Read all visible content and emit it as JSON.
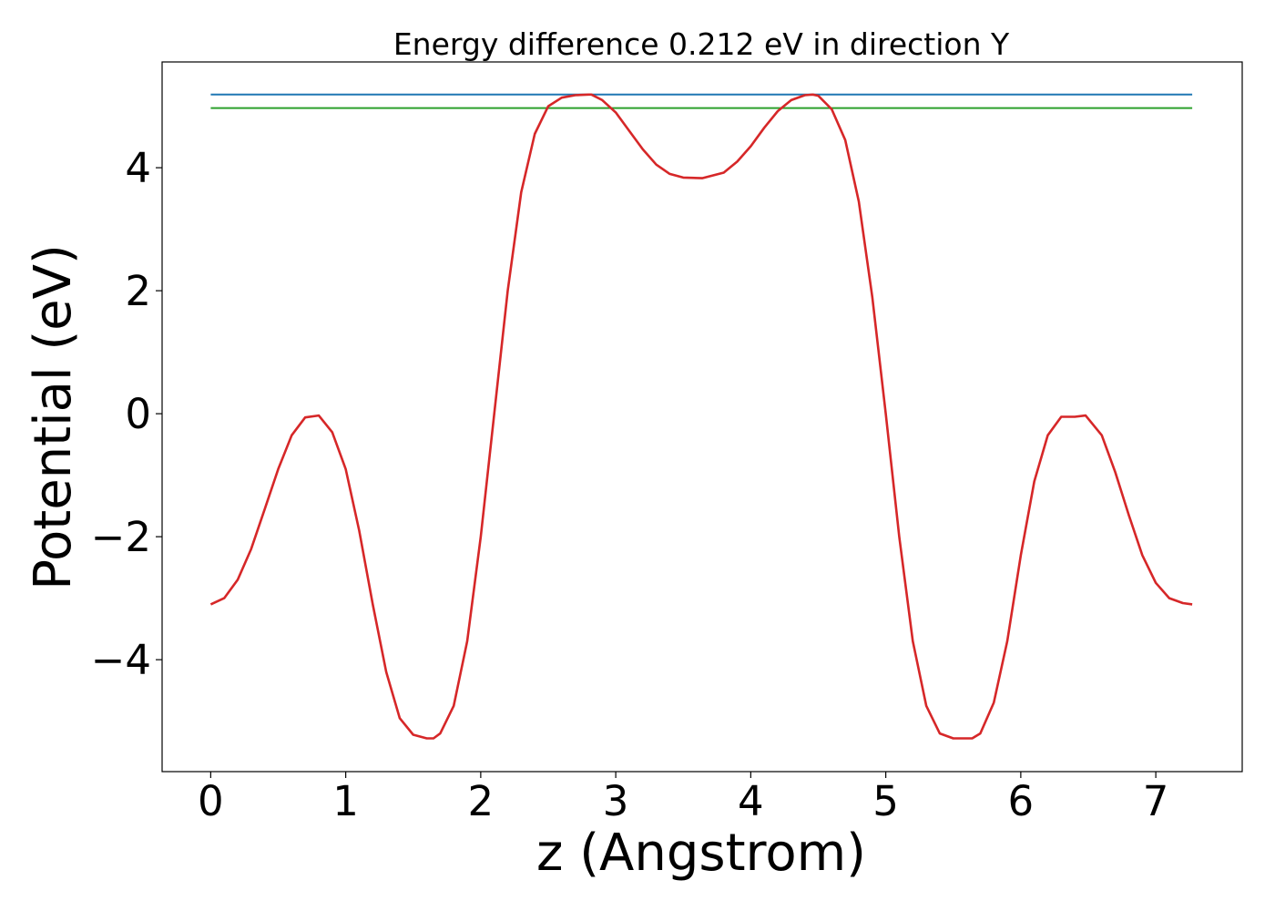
{
  "chart_data": {
    "type": "line",
    "title": "Energy difference 0.212 eV in direction Y",
    "xlabel": "z (Angstrom)",
    "ylabel": "Potential (eV)",
    "xlim": [
      -0.36,
      7.64
    ],
    "ylim": [
      -5.82,
      5.72
    ],
    "xticks": [
      0,
      1,
      2,
      3,
      4,
      5,
      6,
      7
    ],
    "yticks": [
      -4,
      -2,
      0,
      2,
      4
    ],
    "xtick_labels": [
      "0",
      "1",
      "2",
      "3",
      "4",
      "5",
      "6",
      "7"
    ],
    "ytick_labels": [
      "−4",
      "−2",
      "0",
      "2",
      "4"
    ],
    "grid": false,
    "series": [
      {
        "color": "#1f77b4",
        "x": [
          0,
          7.27
        ],
        "y": [
          5.19,
          5.19
        ]
      },
      {
        "color": "#2ca02c",
        "x": [
          0,
          7.27
        ],
        "y": [
          4.97,
          4.97
        ]
      },
      {
        "color": "#d62728",
        "x": [
          0,
          0.1,
          0.2,
          0.3,
          0.4,
          0.5,
          0.6,
          0.7,
          0.8,
          0.9,
          1.0,
          1.1,
          1.2,
          1.3,
          1.4,
          1.5,
          1.6,
          1.65,
          1.7,
          1.8,
          1.9,
          2.0,
          2.1,
          2.2,
          2.3,
          2.4,
          2.5,
          2.6,
          2.7,
          2.8,
          2.82,
          2.9,
          3.0,
          3.1,
          3.2,
          3.3,
          3.4,
          3.5,
          3.64,
          3.8,
          3.9,
          4.0,
          4.1,
          4.2,
          4.3,
          4.4,
          4.46,
          4.5,
          4.6,
          4.7,
          4.8,
          4.9,
          5.0,
          5.1,
          5.2,
          5.3,
          5.4,
          5.5,
          5.6,
          5.64,
          5.7,
          5.8,
          5.9,
          6.0,
          6.1,
          6.2,
          6.3,
          6.4,
          6.48,
          6.6,
          6.7,
          6.8,
          6.9,
          7.0,
          7.1,
          7.2,
          7.27
        ],
        "y": [
          -3.1,
          -3.0,
          -2.7,
          -2.2,
          -1.55,
          -0.9,
          -0.35,
          -0.06,
          -0.03,
          -0.3,
          -0.9,
          -1.9,
          -3.1,
          -4.2,
          -4.95,
          -5.22,
          -5.28,
          -5.28,
          -5.2,
          -4.75,
          -3.7,
          -2.0,
          0.0,
          2.0,
          3.6,
          4.55,
          5.0,
          5.14,
          5.18,
          5.19,
          5.19,
          5.1,
          4.9,
          4.6,
          4.3,
          4.05,
          3.9,
          3.84,
          3.83,
          3.92,
          4.1,
          4.35,
          4.65,
          4.92,
          5.1,
          5.18,
          5.19,
          5.17,
          4.95,
          4.45,
          3.45,
          1.9,
          0.0,
          -2.0,
          -3.7,
          -4.75,
          -5.2,
          -5.28,
          -5.28,
          -5.28,
          -5.2,
          -4.7,
          -3.7,
          -2.3,
          -1.1,
          -0.35,
          -0.05,
          -0.05,
          -0.03,
          -0.35,
          -0.95,
          -1.65,
          -2.3,
          -2.75,
          -3.0,
          -3.08,
          -3.1
        ]
      }
    ]
  }
}
